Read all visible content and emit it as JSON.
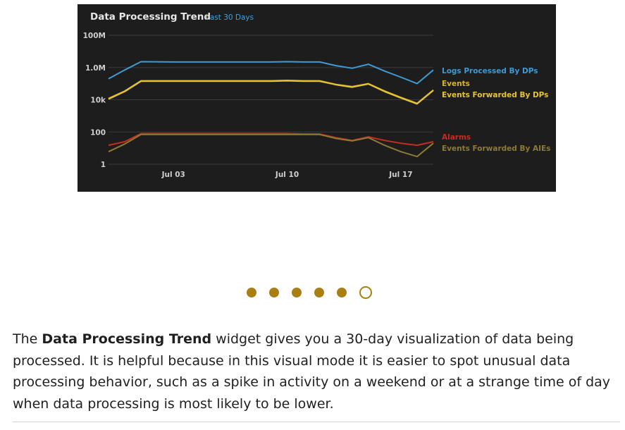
{
  "chart_data": {
    "type": "line",
    "title": "Data Processing Trend",
    "subtitle": "Last 30 Days",
    "y_scale": "log",
    "ylim": [
      1,
      100000000
    ],
    "y_ticks": [
      {
        "value": 100000000,
        "label": "100M"
      },
      {
        "value": 1000000,
        "label": "1.0M"
      },
      {
        "value": 10000,
        "label": "10k"
      },
      {
        "value": 100,
        "label": "100"
      },
      {
        "value": 1,
        "label": "1"
      }
    ],
    "x_ticks": [
      {
        "value": 3,
        "label": "Jul 03"
      },
      {
        "value": 10,
        "label": "Jul 10"
      },
      {
        "value": 17,
        "label": "Jul 17"
      }
    ],
    "xlim": [
      -1,
      19
    ],
    "x": [
      -1,
      0,
      1,
      3,
      5,
      7,
      9,
      10,
      11,
      12,
      13,
      14,
      15,
      16,
      17,
      18,
      19
    ],
    "grid": true,
    "legend_position": "right",
    "background": "#1d1d1d",
    "series": [
      {
        "name": "Logs Processed By DPs",
        "color": "#3f9ad4",
        "values": [
          200000,
          700000,
          2300000,
          2200000,
          2200000,
          2200000,
          2200000,
          2300000,
          2200000,
          2200000,
          1300000,
          900000,
          1600000,
          600000,
          250000,
          100000,
          700000
        ]
      },
      {
        "name": "Events",
        "color": "#d9b32a",
        "values": [
          12000,
          35000,
          150000,
          150000,
          150000,
          150000,
          150000,
          160000,
          150000,
          150000,
          90000,
          65000,
          100000,
          35000,
          14000,
          6000,
          40000
        ]
      },
      {
        "name": "Events Forwarded By DPs",
        "color": "#e6c532",
        "values": [
          11000,
          32000,
          140000,
          140000,
          140000,
          140000,
          140000,
          150000,
          140000,
          140000,
          85000,
          60000,
          95000,
          32000,
          13000,
          5500,
          38000
        ]
      },
      {
        "name": "Alarms",
        "color": "#c42d1f",
        "values": [
          15,
          25,
          80,
          80,
          80,
          80,
          80,
          80,
          75,
          75,
          45,
          30,
          50,
          30,
          20,
          15,
          25
        ]
      },
      {
        "name": "Events Forwarded By AIEs",
        "color": "#8c7a35",
        "values": [
          6,
          18,
          70,
          70,
          70,
          70,
          70,
          70,
          70,
          70,
          40,
          28,
          45,
          15,
          6,
          3,
          20
        ]
      }
    ]
  },
  "carousel": {
    "total": 6,
    "active_index": 5,
    "color": "#a97f12"
  },
  "description": {
    "prefix": "The ",
    "bold": "Data Processing Trend",
    "suffix": " widget gives you a 30-day visualization of data being processed. It is helpful because in this visual mode it is easier to spot unusual data processing behavior, such as a spike in activity on a weekend or at a strange time of day when data processing is most likely to be lower."
  }
}
